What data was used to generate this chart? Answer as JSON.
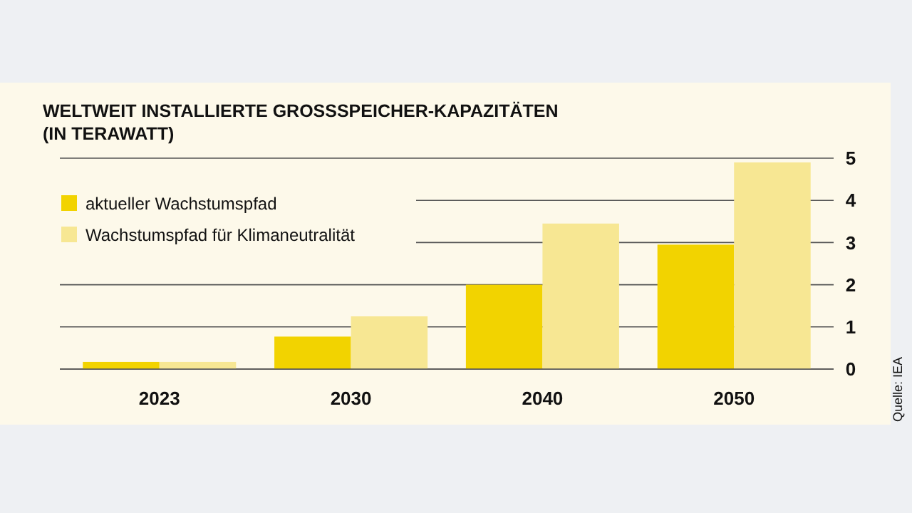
{
  "chart_data": {
    "type": "bar",
    "title": "WELTWEIT INSTALLIERTE GROSSSPEICHER-KAPAZITÄTEN (IN TERAWATT)",
    "categories": [
      "2023",
      "2030",
      "2040",
      "2050"
    ],
    "series": [
      {
        "name": "aktueller Wachstumspfad",
        "color": "#f2d300",
        "values": [
          0.17,
          0.77,
          2.0,
          2.95
        ]
      },
      {
        "name": "Wachstumspfad für Klimaneutralität",
        "color": "#f7e793",
        "values": [
          0.17,
          1.25,
          3.45,
          4.9
        ]
      }
    ],
    "ylim": [
      0,
      5
    ],
    "yticks": [
      0,
      1,
      2,
      3,
      4,
      5
    ],
    "grid": "y",
    "legend": "top left",
    "annotations": [
      "Quelle: IEA"
    ]
  }
}
